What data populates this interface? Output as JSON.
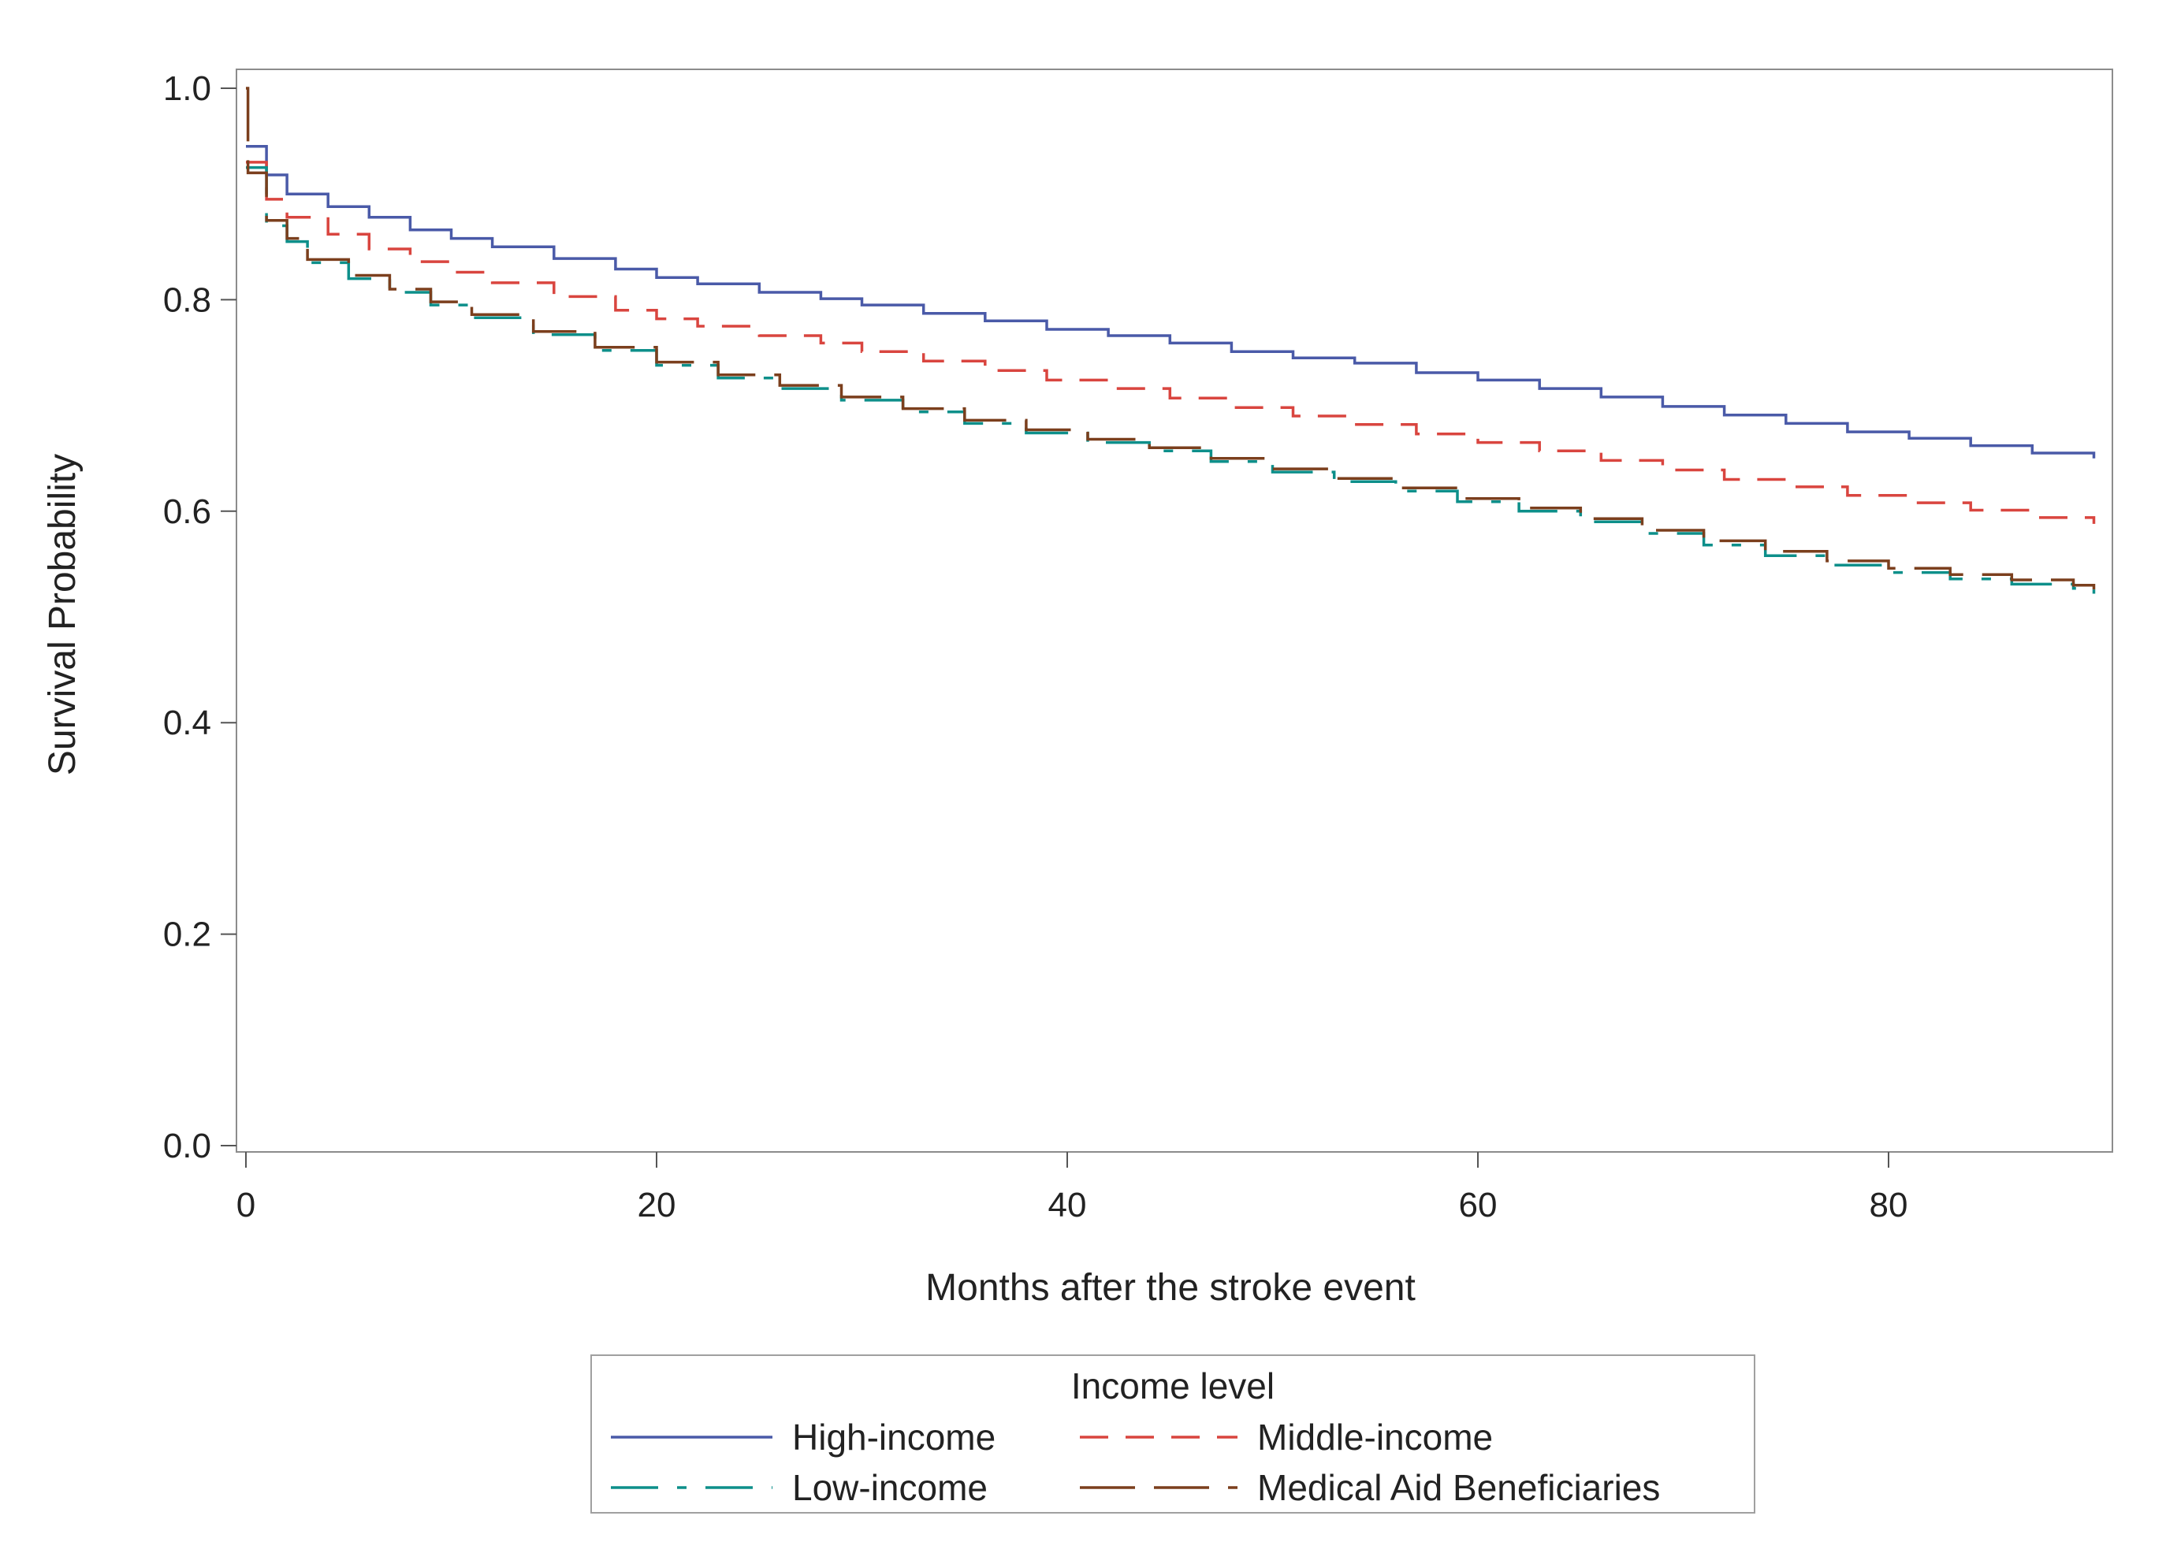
{
  "chart_data": {
    "type": "line",
    "title": "",
    "xlabel": "Months after the stroke event",
    "ylabel": "Survival Probability",
    "xlim": [
      0,
      91
    ],
    "ylim": [
      0.0,
      1.0
    ],
    "xticks": [
      0,
      20,
      40,
      60,
      80
    ],
    "xtick_labels": [
      "0",
      "20",
      "40",
      "60",
      "80"
    ],
    "yticks": [
      0.0,
      0.2,
      0.4,
      0.6,
      0.8,
      1.0
    ],
    "ytick_labels": [
      "0.0",
      "0.2",
      "0.4",
      "0.6",
      "0.8",
      "1.0"
    ],
    "grid": false,
    "step": true,
    "legend": {
      "title": "Income level",
      "placement": "bottom-center",
      "columns": 2
    },
    "series": [
      {
        "name": "High-income",
        "color": "#4a5aa8",
        "dash": "solid",
        "x": [
          0,
          1,
          2,
          4,
          6,
          8,
          10,
          12,
          15,
          18,
          20,
          22,
          25,
          28,
          30,
          33,
          36,
          39,
          42,
          45,
          48,
          51,
          54,
          57,
          60,
          63,
          66,
          69,
          72,
          75,
          78,
          81,
          84,
          87,
          90
        ],
        "y": [
          0.945,
          0.918,
          0.9,
          0.888,
          0.878,
          0.866,
          0.858,
          0.85,
          0.839,
          0.829,
          0.821,
          0.815,
          0.807,
          0.801,
          0.795,
          0.787,
          0.78,
          0.772,
          0.766,
          0.759,
          0.751,
          0.745,
          0.74,
          0.731,
          0.724,
          0.716,
          0.708,
          0.699,
          0.691,
          0.683,
          0.675,
          0.669,
          0.662,
          0.655,
          0.65
        ]
      },
      {
        "name": "Middle-income",
        "color": "#d9453f",
        "dash": "dash",
        "x": [
          0,
          1,
          2,
          4,
          6,
          8,
          10,
          12,
          15,
          18,
          20,
          22,
          25,
          28,
          30,
          33,
          36,
          39,
          42,
          45,
          48,
          51,
          54,
          57,
          60,
          63,
          66,
          69,
          72,
          75,
          78,
          81,
          84,
          87,
          90
        ],
        "y": [
          0.93,
          0.895,
          0.878,
          0.862,
          0.848,
          0.836,
          0.826,
          0.816,
          0.803,
          0.79,
          0.782,
          0.775,
          0.766,
          0.759,
          0.751,
          0.742,
          0.733,
          0.724,
          0.716,
          0.707,
          0.698,
          0.69,
          0.682,
          0.673,
          0.665,
          0.657,
          0.648,
          0.639,
          0.63,
          0.623,
          0.615,
          0.608,
          0.601,
          0.594,
          0.588
        ]
      },
      {
        "name": "Low-income",
        "color": "#0d8f8a",
        "dash": "dashdot",
        "x": [
          0,
          1,
          2,
          3,
          5,
          7,
          9,
          11,
          14,
          17,
          20,
          23,
          26,
          29,
          32,
          35,
          38,
          41,
          44,
          47,
          50,
          53,
          56,
          59,
          62,
          65,
          68,
          71,
          74,
          77,
          80,
          83,
          86,
          89,
          90
        ],
        "y": [
          0.925,
          0.87,
          0.855,
          0.835,
          0.82,
          0.807,
          0.795,
          0.783,
          0.767,
          0.752,
          0.738,
          0.726,
          0.716,
          0.705,
          0.694,
          0.683,
          0.674,
          0.665,
          0.657,
          0.647,
          0.637,
          0.628,
          0.619,
          0.609,
          0.6,
          0.59,
          0.579,
          0.568,
          0.558,
          0.549,
          0.542,
          0.536,
          0.531,
          0.527,
          0.522
        ]
      },
      {
        "name": "Medical Aid Beneficiaries",
        "color": "#7b3f1d",
        "dash": "longdash",
        "x": [
          0,
          0.1,
          1,
          2,
          3,
          5,
          7,
          9,
          11,
          14,
          17,
          20,
          23,
          26,
          29,
          32,
          35,
          38,
          41,
          44,
          47,
          50,
          53,
          56,
          59,
          62,
          65,
          68,
          71,
          74,
          77,
          80,
          83,
          86,
          89,
          90
        ],
        "y": [
          1.0,
          0.92,
          0.875,
          0.858,
          0.838,
          0.823,
          0.81,
          0.798,
          0.786,
          0.77,
          0.755,
          0.741,
          0.729,
          0.719,
          0.708,
          0.697,
          0.686,
          0.677,
          0.668,
          0.66,
          0.65,
          0.64,
          0.631,
          0.622,
          0.612,
          0.603,
          0.593,
          0.582,
          0.572,
          0.562,
          0.553,
          0.546,
          0.54,
          0.535,
          0.53,
          0.526
        ]
      }
    ]
  }
}
